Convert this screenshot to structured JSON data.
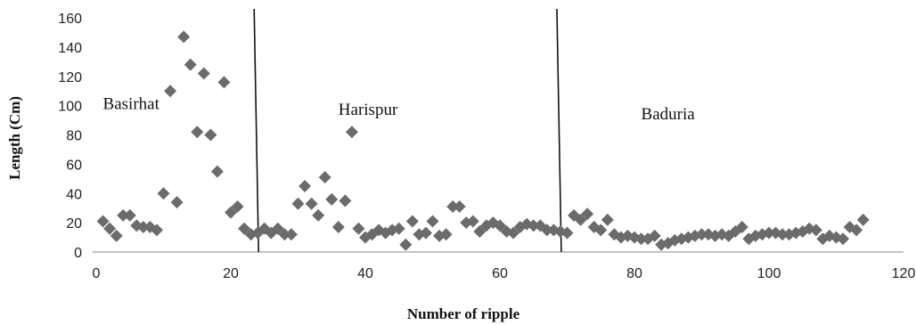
{
  "chart_data": {
    "type": "scatter",
    "xlabel": "Number of ripple",
    "ylabel": "Length (Cm)",
    "xlim": [
      0,
      120
    ],
    "ylim": [
      0,
      160
    ],
    "xticks": [
      "0",
      "20",
      "40",
      "60",
      "80",
      "100",
      "120"
    ],
    "yticks": [
      "0",
      "20",
      "40",
      "60",
      "80",
      "100",
      "120",
      "140",
      "160"
    ],
    "grid": false,
    "marker": "diamond",
    "marker_color": "#6b6b6b",
    "divider_x": [
      24,
      69
    ],
    "regions": [
      {
        "label": "Basirhat",
        "x": 1,
        "y": 102
      },
      {
        "label": "Harispur",
        "x": 36,
        "y": 98
      },
      {
        "label": "Baduria",
        "x": 81,
        "y": 95
      }
    ],
    "points": [
      [
        1,
        21
      ],
      [
        2,
        16
      ],
      [
        3,
        11
      ],
      [
        4,
        25
      ],
      [
        5,
        25
      ],
      [
        6,
        18
      ],
      [
        7,
        17
      ],
      [
        8,
        17
      ],
      [
        9,
        15
      ],
      [
        10,
        40
      ],
      [
        11,
        110
      ],
      [
        12,
        34
      ],
      [
        13,
        147
      ],
      [
        14,
        128
      ],
      [
        15,
        82
      ],
      [
        16,
        122
      ],
      [
        17,
        80
      ],
      [
        18,
        55
      ],
      [
        19,
        116
      ],
      [
        20,
        27
      ],
      [
        21,
        31
      ],
      [
        22,
        16
      ],
      [
        23,
        12
      ],
      [
        24,
        13
      ],
      [
        25,
        16
      ],
      [
        26,
        13
      ],
      [
        27,
        16
      ],
      [
        28,
        12
      ],
      [
        29,
        12
      ],
      [
        30,
        33
      ],
      [
        31,
        45
      ],
      [
        32,
        33
      ],
      [
        33,
        25
      ],
      [
        34,
        51
      ],
      [
        35,
        36
      ],
      [
        36,
        17
      ],
      [
        37,
        35
      ],
      [
        38,
        82
      ],
      [
        39,
        16
      ],
      [
        40,
        10
      ],
      [
        41,
        12
      ],
      [
        42,
        15
      ],
      [
        43,
        13
      ],
      [
        44,
        15
      ],
      [
        45,
        16
      ],
      [
        46,
        5
      ],
      [
        47,
        21
      ],
      [
        48,
        12
      ],
      [
        49,
        13
      ],
      [
        50,
        21
      ],
      [
        51,
        11
      ],
      [
        52,
        12
      ],
      [
        53,
        31
      ],
      [
        54,
        31
      ],
      [
        55,
        20
      ],
      [
        56,
        21
      ],
      [
        57,
        14
      ],
      [
        58,
        18
      ],
      [
        59,
        20
      ],
      [
        60,
        18
      ],
      [
        61,
        14
      ],
      [
        62,
        13
      ],
      [
        63,
        17
      ],
      [
        64,
        19
      ],
      [
        65,
        18
      ],
      [
        66,
        18
      ],
      [
        67,
        15
      ],
      [
        68,
        15
      ],
      [
        69,
        14
      ],
      [
        70,
        13
      ],
      [
        71,
        25
      ],
      [
        72,
        22
      ],
      [
        73,
        26
      ],
      [
        74,
        17
      ],
      [
        75,
        15
      ],
      [
        76,
        22
      ],
      [
        77,
        12
      ],
      [
        78,
        10
      ],
      [
        79,
        11
      ],
      [
        80,
        10
      ],
      [
        81,
        9
      ],
      [
        82,
        9
      ],
      [
        83,
        11
      ],
      [
        84,
        5
      ],
      [
        85,
        6
      ],
      [
        86,
        8
      ],
      [
        87,
        9
      ],
      [
        88,
        10
      ],
      [
        89,
        11
      ],
      [
        90,
        12
      ],
      [
        91,
        12
      ],
      [
        92,
        11
      ],
      [
        93,
        12
      ],
      [
        94,
        11
      ],
      [
        95,
        14
      ],
      [
        96,
        17
      ],
      [
        97,
        9
      ],
      [
        98,
        11
      ],
      [
        99,
        12
      ],
      [
        100,
        13
      ],
      [
        101,
        13
      ],
      [
        102,
        12
      ],
      [
        103,
        12
      ],
      [
        104,
        13
      ],
      [
        105,
        14
      ],
      [
        106,
        16
      ],
      [
        107,
        15
      ],
      [
        108,
        9
      ],
      [
        109,
        11
      ],
      [
        110,
        10
      ],
      [
        111,
        9
      ],
      [
        112,
        17
      ],
      [
        113,
        15
      ],
      [
        114,
        22
      ]
    ]
  }
}
